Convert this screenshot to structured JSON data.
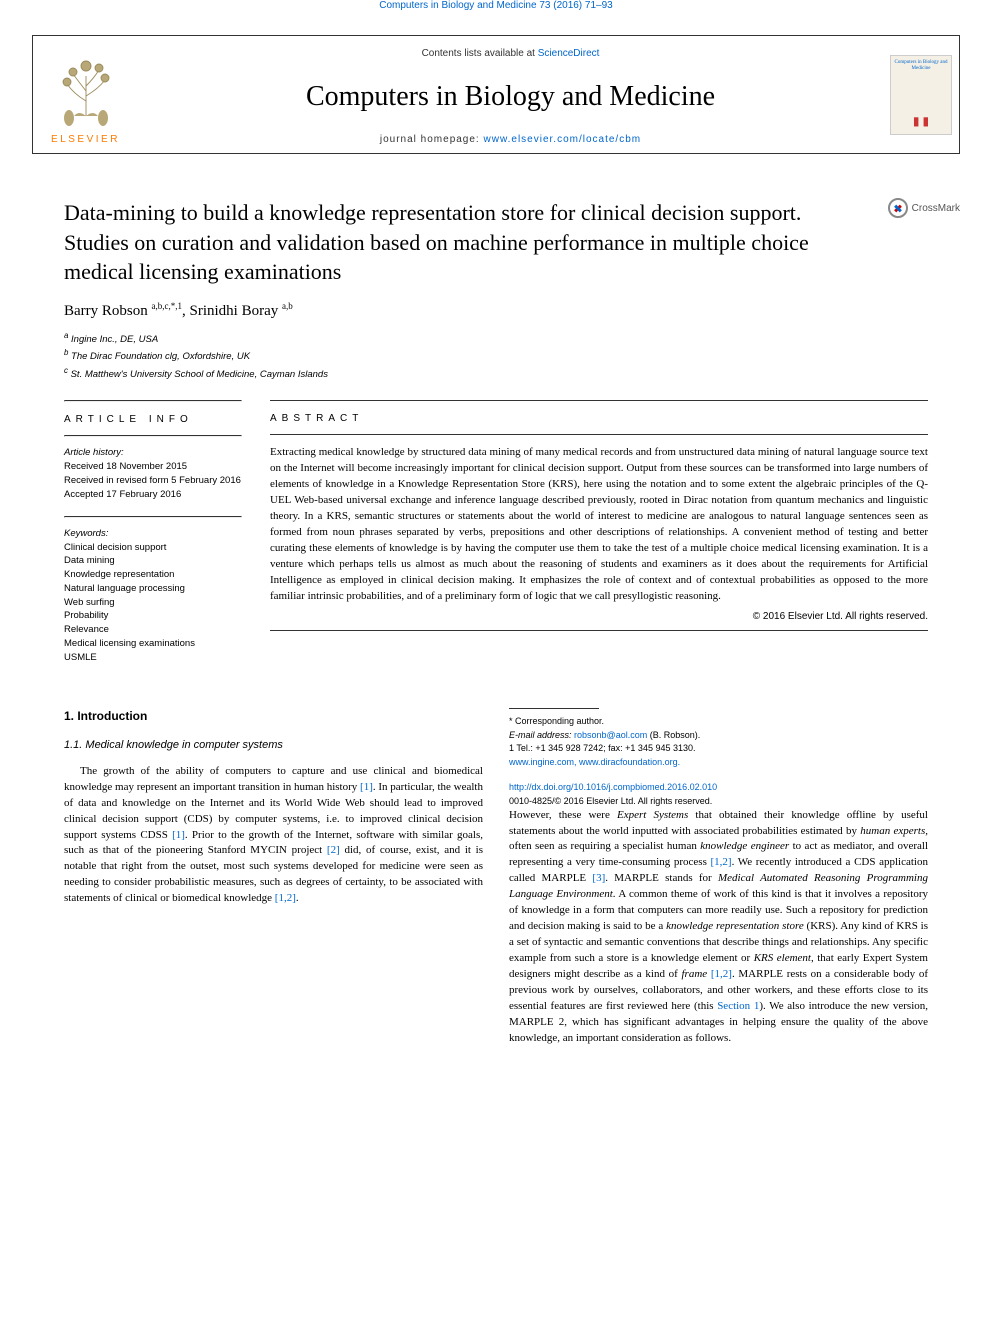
{
  "header": {
    "citation": "Computers in Biology and Medicine 73 (2016) 71–93",
    "contents_prefix": "Contents lists available at ",
    "contents_link": "ScienceDirect",
    "journal_name": "Computers in Biology and Medicine",
    "homepage_prefix": "journal homepage: ",
    "homepage_url": "www.elsevier.com/locate/cbm",
    "publisher_name": "ELSEVIER",
    "cover_title": "Computers in Biology and Medicine",
    "crossmark_label": "CrossMark"
  },
  "article": {
    "title": "Data-mining to build a knowledge representation store for clinical decision support. Studies on curation and validation based on machine performance in multiple choice medical licensing examinations",
    "authors_html": "Barry Robson <span class=\"sup\">a,b,c,*,1</span>, Srinidhi Boray <span class=\"sup\">a,b</span>",
    "affiliations": [
      "a Ingine Inc., DE, USA",
      "b The Dirac Foundation clg, Oxfordshire, UK",
      "c St. Matthew's University School of Medicine, Cayman Islands"
    ]
  },
  "info": {
    "heading": "ARTICLE INFO",
    "history_label": "Article history:",
    "history_received": "Received 18 November 2015",
    "history_revised": "Received in revised form 5 February 2016",
    "history_accepted": "Accepted 17 February 2016",
    "keywords_label": "Keywords:",
    "keywords": [
      "Clinical decision support",
      "Data mining",
      "Knowledge representation",
      "Natural language processing",
      "Web surfing",
      "Probability",
      "Relevance",
      "Medical licensing examinations",
      "USMLE"
    ]
  },
  "abstract": {
    "heading": "ABSTRACT",
    "text": "Extracting medical knowledge by structured data mining of many medical records and from unstructured data mining of natural language source text on the Internet will become increasingly important for clinical decision support. Output from these sources can be transformed into large numbers of elements of knowledge in a Knowledge Representation Store (KRS), here using the notation and to some extent the algebraic principles of the Q-UEL Web-based universal exchange and inference language described previously, rooted in Dirac notation from quantum mechanics and linguistic theory. In a KRS, semantic structures or statements about the world of interest to medicine are analogous to natural language sentences seen as formed from noun phrases separated by verbs, prepositions and other descriptions of relationships. A convenient method of testing and better curating these elements of knowledge is by having the computer use them to take the test of a multiple choice medical licensing examination. It is a venture which perhaps tells us almost as much about the reasoning of students and examiners as it does about the requirements for Artificial Intelligence as employed in clinical decision making. It emphasizes the role of context and of contextual probabilities as opposed to the more familiar intrinsic probabilities, and of a preliminary form of logic that we call presyllogistic reasoning.",
    "copyright": "© 2016 Elsevier Ltd. All rights reserved."
  },
  "body": {
    "h2": "1.  Introduction",
    "h3": "1.1. Medical knowledge in computer systems",
    "p1_html": "The growth of the ability of computers to capture and use clinical and biomedical knowledge may represent an important transition in human history <span class=\"ref\">[1]</span>. In particular, the wealth of data and knowledge on the Internet and its World Wide Web should lead to improved clinical decision support (CDS) by computer systems, i.e. to improved clinical decision support systems CDSS <span class=\"ref\">[1]</span>. Prior to the growth of the Internet, software with similar goals, such as that of the pioneering Stanford MYCIN project <span class=\"ref\">[2]</span> did, of course, exist, and it is notable that right from the outset, most such systems developed for medicine were seen as needing to consider probabilistic measures, such as degrees of certainty, to be associated with statements of clinical or biomedical knowledge <span class=\"ref\">[1,2]</span>.",
    "p2_html": "However, these were <span class=\"ital\">Expert Systems</span> that obtained their knowledge offline by useful statements about the world inputted with associated probabilities estimated by <span class=\"ital\">human experts</span>, often seen as requiring a specialist human <span class=\"ital\">knowledge engineer</span> to act as mediator, and overall representing a very time-consuming process <span class=\"ref\">[1,2]</span>. We recently introduced a CDS application called MARPLE <span class=\"ref\">[3]</span>. MARPLE stands for <span class=\"ital\">Medical Automated Reasoning Programming Language Environment</span>. A common theme of work of this kind is that it involves a repository of knowledge in a form that computers can more readily use. Such a repository for prediction and decision making is said to be a <span class=\"ital\">knowledge representation store</span> (KRS). Any kind of KRS is a set of syntactic and semantic conventions that describe things and relationships. Any specific example from such a store is a knowledge element or <span class=\"ital\">KRS element</span>, that early Expert System designers might describe as a kind of <span class=\"ital\">frame</span> <span class=\"ref\">[1,2]</span>. MARPLE rests on a considerable body of previous work by ourselves, collaborators, and other workers, and these efforts close to its essential features are first reviewed here (this <span class=\"ref\">Section 1</span>). We also introduce the new version, MARPLE 2, which has significant advantages in helping ensure the quality of the above knowledge, an important consideration as follows."
  },
  "footer": {
    "corresponding": "* Corresponding author.",
    "email_label": "E-mail address: ",
    "email": "robsonb@aol.com",
    "email_suffix": " (B. Robson).",
    "tel": "1 Tel.: +1 345 928 7242; fax: +1 345 945 3130.",
    "urls": "www.ingine.com, www.diracfoundation.org.",
    "doi": "http://dx.doi.org/10.1016/j.compbiomed.2016.02.010",
    "issn_line": "0010-4825/© 2016 Elsevier Ltd. All rights reserved."
  },
  "colors": {
    "link": "#0066cc",
    "elsevier_orange": "#ff7a00",
    "text": "#000000",
    "rule": "#333333"
  }
}
